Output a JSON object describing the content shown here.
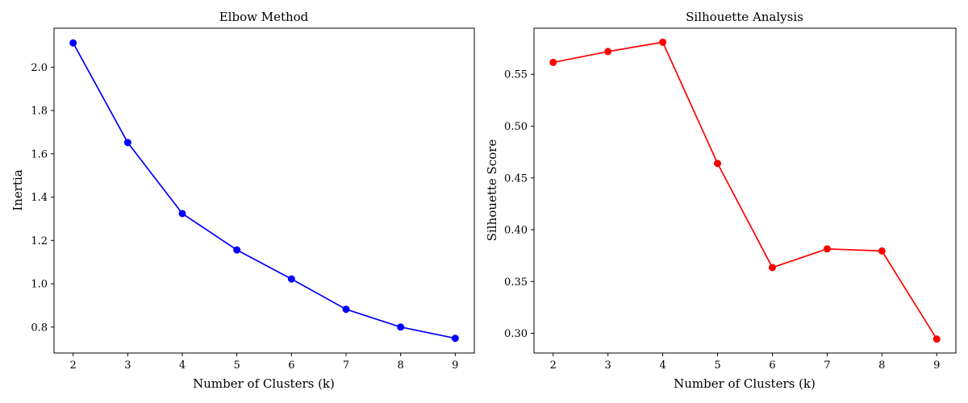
{
  "chart_data": [
    {
      "type": "line",
      "title": "Elbow Method",
      "xlabel": "Number of Clusters (k)",
      "ylabel": "Inertia",
      "x": [
        2,
        3,
        4,
        5,
        6,
        7,
        8,
        9
      ],
      "xlim": [
        1.65,
        9.35
      ],
      "ylim": [
        0.68,
        2.18
      ],
      "xticks": [
        "2",
        "3",
        "4",
        "5",
        "6",
        "7",
        "8",
        "9"
      ],
      "yticks": [
        "0.8",
        "1.0",
        "1.2",
        "1.4",
        "1.6",
        "1.8",
        "2.0"
      ],
      "series": [
        {
          "values": [
            2.112,
            1.652,
            1.324,
            1.156,
            1.022,
            0.882,
            0.8,
            0.748
          ],
          "color": "#0000ff",
          "marker": "circle"
        }
      ],
      "grid": false,
      "legend": "none"
    },
    {
      "type": "line",
      "title": "Silhouette Analysis",
      "xlabel": "Number of Clusters (k)",
      "ylabel": "Silhouette Score",
      "x": [
        2,
        3,
        4,
        5,
        6,
        7,
        8,
        9
      ],
      "xlim": [
        1.65,
        9.35
      ],
      "ylim": [
        0.281,
        0.5945
      ],
      "xticks": [
        "2",
        "3",
        "4",
        "5",
        "6",
        "7",
        "8",
        "9"
      ],
      "yticks": [
        "0.30",
        "0.35",
        "0.40",
        "0.45",
        "0.50",
        "0.55"
      ],
      "series": [
        {
          "values": [
            0.5615,
            0.572,
            0.581,
            0.464,
            0.3635,
            0.3815,
            0.3795,
            0.2945
          ],
          "color": "#ff0000",
          "marker": "circle"
        }
      ],
      "grid": false,
      "legend": "none"
    }
  ]
}
